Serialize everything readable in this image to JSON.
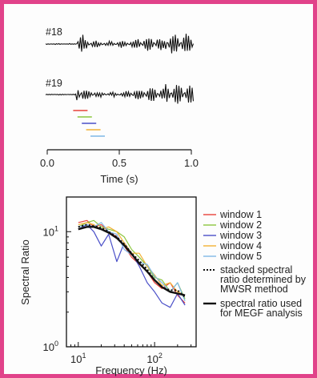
{
  "waveforms": {
    "traces": [
      {
        "label": "#18"
      },
      {
        "label": "#19"
      }
    ],
    "xlabel": "Time (s)",
    "xticks": [
      "0.0",
      "0.5",
      "1.0"
    ],
    "xlim": [
      0,
      1
    ],
    "windows": [
      {
        "color": "#e8413a",
        "start": 0.18,
        "end": 0.28
      },
      {
        "color": "#8cc63f",
        "start": 0.21,
        "end": 0.31
      },
      {
        "color": "#4a4fc8",
        "start": 0.24,
        "end": 0.34
      },
      {
        "color": "#f2b134",
        "start": 0.27,
        "end": 0.37
      },
      {
        "color": "#7fb8e6",
        "start": 0.3,
        "end": 0.4
      }
    ]
  },
  "chart_data": {
    "type": "line",
    "ylabel": "Spectral Ratio",
    "xlabel": "Frequency (Hz)",
    "xscale": "log",
    "yscale": "log",
    "xlim": [
      7,
      350
    ],
    "ylim": [
      1,
      20
    ],
    "xticks": [
      {
        "value": 10,
        "base": "10",
        "exp": "1"
      },
      {
        "value": 100,
        "base": "10",
        "exp": "2"
      }
    ],
    "yticks": [
      {
        "value": 1,
        "base": "10",
        "exp": "0"
      },
      {
        "value": 10,
        "base": "10",
        "exp": "1"
      }
    ],
    "x": [
      10,
      13,
      16,
      20,
      25,
      32,
      40,
      50,
      63,
      80,
      100,
      125,
      160,
      200,
      250
    ],
    "series": [
      {
        "name": "window 1",
        "color": "#e8413a",
        "style": "solid",
        "values": [
          12,
          12.5,
          11,
          11.5,
          10,
          9,
          7.5,
          6,
          5.2,
          4.5,
          3.6,
          3.2,
          3.6,
          2.8,
          2.4
        ]
      },
      {
        "name": "window 2",
        "color": "#8cc63f",
        "style": "solid",
        "values": [
          11,
          12,
          12.5,
          11,
          10.5,
          10,
          9,
          7,
          6,
          5,
          4,
          3.8,
          3,
          3.6,
          2.6
        ]
      },
      {
        "name": "window 3",
        "color": "#4a4fc8",
        "style": "solid",
        "values": [
          10.5,
          11.5,
          10,
          7.5,
          9.5,
          5.5,
          8,
          6.5,
          5,
          3.6,
          3,
          2.4,
          2.2,
          2.9,
          2.3
        ]
      },
      {
        "name": "window 4",
        "color": "#f2b134",
        "style": "solid",
        "values": [
          11.5,
          12,
          11.5,
          10.5,
          11,
          10,
          8,
          6.5,
          6.5,
          5,
          4.2,
          3.4,
          3.6,
          3,
          2.8
        ]
      },
      {
        "name": "window 5",
        "color": "#7fb8e6",
        "style": "solid",
        "values": [
          11,
          11.5,
          11,
          12,
          10,
          9.5,
          7,
          6.3,
          5.4,
          5.2,
          4.1,
          3.6,
          3,
          3.6,
          2.5
        ]
      },
      {
        "name": "stacked spectral ratio determined by MWSR method",
        "color": "#111111",
        "style": "dotted",
        "values": [
          11,
          11.5,
          11.2,
          10.8,
          10,
          9,
          7.8,
          6.5,
          5.6,
          4.7,
          3.8,
          3.3,
          3.1,
          3.1,
          2.7
        ]
      },
      {
        "name": "spectral ratio used for MEGF analysis",
        "color": "#111111",
        "style": "solid",
        "values": [
          10.5,
          11,
          11,
          10.5,
          9.8,
          8.8,
          7.6,
          6.4,
          5.3,
          4.5,
          3.8,
          3.3,
          3,
          2.9,
          2.8
        ]
      }
    ],
    "legend": {
      "placement": "right",
      "items": [
        {
          "lines": [
            "window 1"
          ]
        },
        {
          "lines": [
            "window 2"
          ]
        },
        {
          "lines": [
            "window 3"
          ]
        },
        {
          "lines": [
            "window 4"
          ]
        },
        {
          "lines": [
            "window 5"
          ]
        },
        {
          "lines": [
            "stacked spectral",
            "ratio determined by",
            "MWSR method"
          ]
        },
        {
          "lines": [
            "spectral ratio used",
            "for MEGF analysis"
          ]
        }
      ]
    }
  }
}
